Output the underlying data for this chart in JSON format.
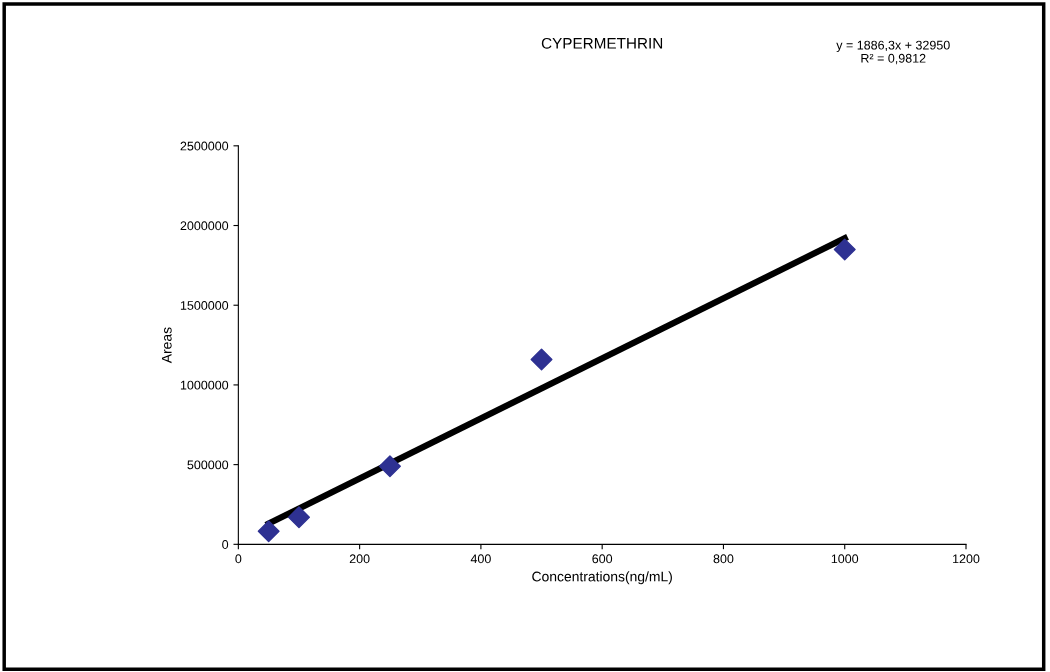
{
  "chart_data": {
    "type": "scatter",
    "title": "CYPERMETHRIN",
    "xlabel": "Concentrations(ng/mL)",
    "ylabel": "Areas",
    "x": [
      50,
      100,
      250,
      500,
      1000
    ],
    "series": [
      {
        "color": "#2e3192",
        "values": [
          82000,
          170000,
          490000,
          1160000,
          1850000
        ],
        "marker": "diamond"
      },
      {
        "type": "line",
        "color": "#000000",
        "x": [
          50,
          1000
        ],
        "values": [
          130000,
          1920000
        ],
        "marker": "none"
      }
    ],
    "annotations": [
      "y = 1886,3x + 32950",
      "R² = 0,9812"
    ],
    "xlim": [
      0,
      1200
    ],
    "xticks": [
      0,
      200,
      400,
      600,
      800,
      1000,
      1200
    ],
    "ylim": [
      0,
      2500000
    ],
    "yticks": [
      0,
      500000,
      1000000,
      1500000,
      2000000,
      2500000
    ],
    "grid": false
  }
}
